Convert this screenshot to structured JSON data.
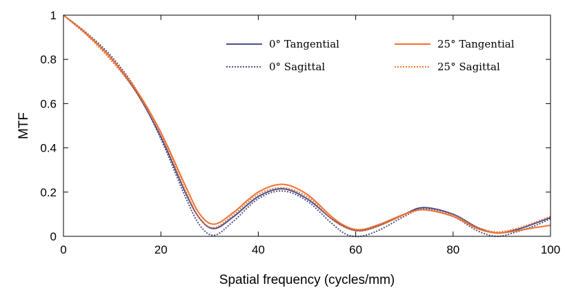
{
  "chart_data": {
    "type": "line",
    "title": "",
    "xlabel": "Spatial frequency (cycles/mm)",
    "ylabel": "MTF",
    "xlim": [
      0,
      100
    ],
    "ylim": [
      0,
      1
    ],
    "xticks": [
      0,
      20,
      40,
      60,
      80,
      100
    ],
    "yticks": [
      0,
      0.2,
      0.4,
      0.6,
      0.8,
      1
    ],
    "ytick_labels": [
      "0",
      "0.2",
      "0.4",
      "0.6",
      "0.8",
      "1"
    ],
    "grid": false,
    "legend_position": "top-right",
    "x": [
      0,
      5,
      10,
      15,
      20,
      25,
      28,
      31,
      35,
      40,
      45,
      50,
      55,
      58,
      61,
      65,
      70,
      74,
      80,
      85,
      89,
      93,
      97,
      100
    ],
    "series": [
      {
        "name": "0° Tangential",
        "color": "#4a4f86",
        "dash": "solid",
        "values": [
          1.0,
          0.91,
          0.8,
          0.65,
          0.45,
          0.2,
          0.08,
          0.035,
          0.09,
          0.18,
          0.215,
          0.17,
          0.08,
          0.04,
          0.025,
          0.05,
          0.1,
          0.13,
          0.1,
          0.04,
          0.015,
          0.03,
          0.06,
          0.085
        ]
      },
      {
        "name": "0° Sagittal",
        "color": "#4a4f86",
        "dash": "dotted",
        "values": [
          1.0,
          0.915,
          0.81,
          0.66,
          0.44,
          0.18,
          0.05,
          0.005,
          0.07,
          0.17,
          0.205,
          0.16,
          0.06,
          0.01,
          0.0,
          0.03,
          0.09,
          0.125,
          0.09,
          0.025,
          0.0,
          0.02,
          0.05,
          0.08
        ]
      },
      {
        "name": "25° Tangential",
        "color": "#f07030",
        "dash": "solid",
        "values": [
          1.0,
          0.91,
          0.8,
          0.66,
          0.47,
          0.23,
          0.1,
          0.055,
          0.11,
          0.2,
          0.235,
          0.19,
          0.09,
          0.045,
          0.03,
          0.055,
          0.1,
          0.12,
          0.09,
          0.035,
          0.015,
          0.025,
          0.04,
          0.05
        ]
      },
      {
        "name": "25° Sagittal",
        "color": "#f07030",
        "dash": "dotted",
        "values": [
          1.0,
          0.905,
          0.79,
          0.65,
          0.46,
          0.21,
          0.08,
          0.04,
          0.1,
          0.19,
          0.22,
          0.18,
          0.08,
          0.04,
          0.025,
          0.05,
          0.095,
          0.12,
          0.095,
          0.04,
          0.02,
          0.035,
          0.065,
          0.09
        ]
      }
    ]
  }
}
